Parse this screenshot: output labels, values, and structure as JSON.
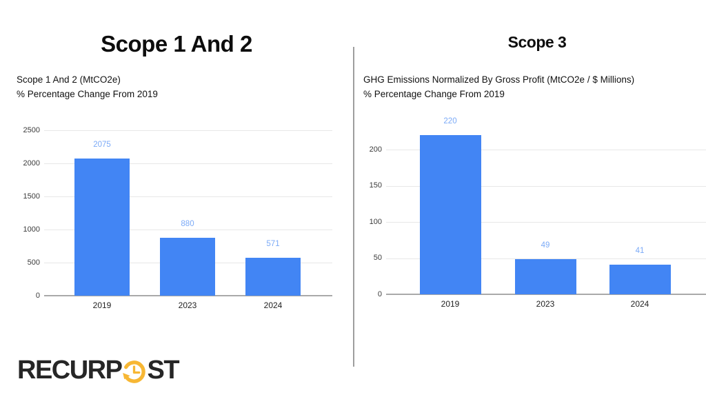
{
  "slide": {
    "background": "#FFFFFF"
  },
  "divider": {
    "color": "#9E9E9E"
  },
  "chart_data": [
    {
      "type": "bar",
      "title": "Scope 1 And 2",
      "subtitle": "Scope 1 And 2 (MtCO2e)",
      "subtitle2": "% Percentage Change From 2019",
      "categories": [
        "2019",
        "2023",
        "2024"
      ],
      "values": [
        2075,
        880,
        571
      ],
      "value_labels": [
        "2075",
        "880",
        "571"
      ],
      "xlabel": "",
      "ylabel": "",
      "ylim": [
        0,
        2500
      ],
      "yticks": [
        0,
        500,
        1000,
        1500,
        2000,
        2500
      ],
      "grid": true,
      "legend": "none",
      "bar_color": "#4285F4",
      "value_label_color": "#7BAAF7"
    },
    {
      "type": "bar",
      "title": "Scope 3",
      "subtitle": "GHG Emissions Normalized By Gross Profit (MtCO2e / $ Millions)",
      "subtitle2": "% Percentage Change From 2019",
      "categories": [
        "2019",
        "2023",
        "2024"
      ],
      "values": [
        220,
        49,
        41
      ],
      "value_labels": [
        "220",
        "49",
        "41"
      ],
      "xlabel": "",
      "ylabel": "",
      "ylim": [
        0,
        220
      ],
      "yticks": [
        0,
        50,
        100,
        150,
        200
      ],
      "grid": true,
      "legend": "none",
      "bar_color": "#4285F4",
      "value_label_color": "#7BAAF7"
    }
  ],
  "logo": {
    "name": "RecurPost",
    "text_left": "RECURP",
    "text_right": "ST",
    "icon": "clock-history-icon",
    "text_color": "#262626",
    "accent_color": "#F7B734"
  }
}
